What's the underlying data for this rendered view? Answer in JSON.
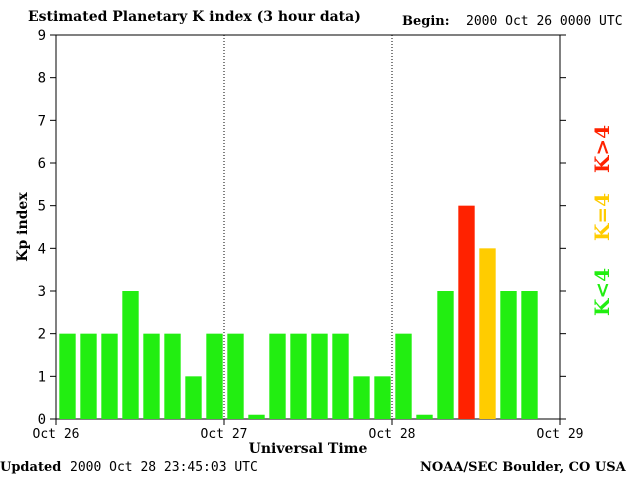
{
  "header": {
    "title": "Estimated Planetary K index (3 hour data)",
    "begin_label": "Begin:",
    "begin_value": "2000 Oct 26 0000 UTC"
  },
  "footer": {
    "updated_label": "Updated",
    "updated_value": "2000 Oct 28 23:45:03 UTC",
    "source": "NOAA/SEC Boulder, CO USA"
  },
  "legend": {
    "k_less_4": "K<4",
    "k_eq_4": "K=4",
    "k_greater_4": "K>4"
  },
  "colors": {
    "k_less_4": "#22ee11",
    "k_eq_4": "#ffcc00",
    "k_greater_4": "#ff2200"
  },
  "chart_data": {
    "type": "bar",
    "xlabel": "Universal Time",
    "ylabel": "Kp index",
    "ylim": [
      0,
      9
    ],
    "yticks": [
      0,
      1,
      2,
      3,
      4,
      5,
      6,
      7,
      8,
      9
    ],
    "xticks": [
      "Oct 26",
      "Oct 27",
      "Oct 28",
      "Oct 29"
    ],
    "values": [
      2,
      2,
      2,
      3,
      2,
      2,
      1,
      2,
      2,
      0.1,
      2,
      2,
      2,
      2,
      1,
      1,
      2,
      0.1,
      3,
      5,
      4,
      3,
      3
    ]
  }
}
